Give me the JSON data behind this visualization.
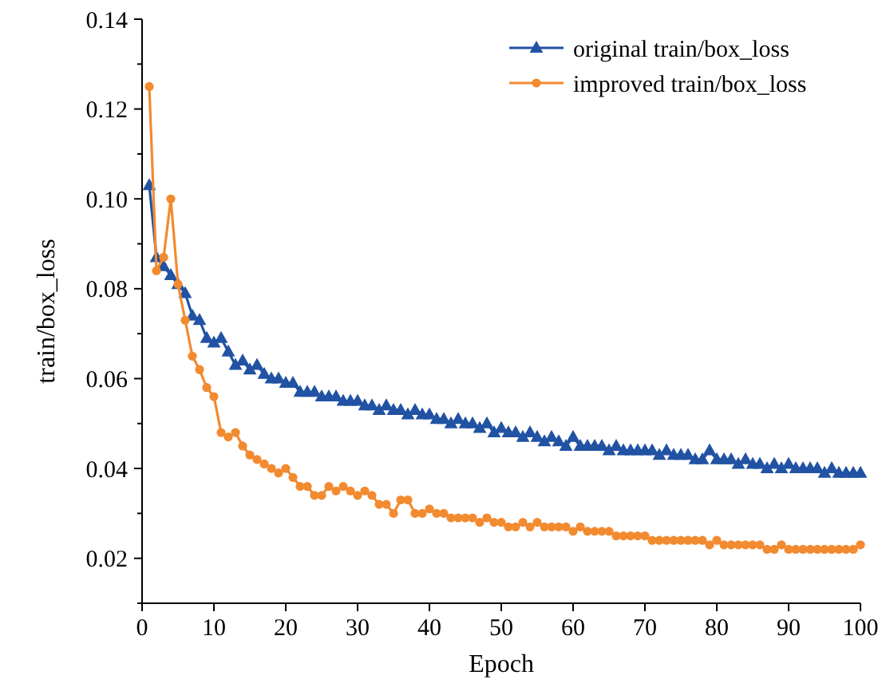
{
  "chart_data": {
    "type": "line",
    "xlabel": "Epoch",
    "ylabel": "train/box_loss",
    "x": [
      1,
      2,
      3,
      4,
      5,
      6,
      7,
      8,
      9,
      10,
      11,
      12,
      13,
      14,
      15,
      16,
      17,
      18,
      19,
      20,
      21,
      22,
      23,
      24,
      25,
      26,
      27,
      28,
      29,
      30,
      31,
      32,
      33,
      34,
      35,
      36,
      37,
      38,
      39,
      40,
      41,
      42,
      43,
      44,
      45,
      46,
      47,
      48,
      49,
      50,
      51,
      52,
      53,
      54,
      55,
      56,
      57,
      58,
      59,
      60,
      61,
      62,
      63,
      64,
      65,
      66,
      67,
      68,
      69,
      70,
      71,
      72,
      73,
      74,
      75,
      76,
      77,
      78,
      79,
      80,
      81,
      82,
      83,
      84,
      85,
      86,
      87,
      88,
      89,
      90,
      91,
      92,
      93,
      94,
      95,
      96,
      97,
      98,
      99,
      100
    ],
    "series": [
      {
        "name": "original train/box_loss",
        "color": "#2152a3",
        "marker": "triangle",
        "values": [
          0.103,
          0.087,
          0.085,
          0.083,
          0.081,
          0.079,
          0.074,
          0.073,
          0.069,
          0.068,
          0.069,
          0.066,
          0.063,
          0.064,
          0.062,
          0.063,
          0.061,
          0.06,
          0.06,
          0.059,
          0.059,
          0.057,
          0.057,
          0.057,
          0.056,
          0.056,
          0.056,
          0.055,
          0.055,
          0.055,
          0.054,
          0.054,
          0.053,
          0.054,
          0.053,
          0.053,
          0.052,
          0.053,
          0.052,
          0.052,
          0.051,
          0.051,
          0.05,
          0.051,
          0.05,
          0.05,
          0.049,
          0.05,
          0.048,
          0.049,
          0.048,
          0.048,
          0.047,
          0.048,
          0.047,
          0.046,
          0.047,
          0.046,
          0.045,
          0.047,
          0.045,
          0.045,
          0.045,
          0.045,
          0.044,
          0.045,
          0.044,
          0.044,
          0.044,
          0.044,
          0.044,
          0.043,
          0.044,
          0.043,
          0.043,
          0.043,
          0.042,
          0.042,
          0.044,
          0.042,
          0.042,
          0.042,
          0.041,
          0.042,
          0.041,
          0.041,
          0.04,
          0.041,
          0.04,
          0.041,
          0.04,
          0.04,
          0.04,
          0.04,
          0.039,
          0.04,
          0.039,
          0.039,
          0.039,
          0.039
        ]
      },
      {
        "name": "improved train/box_loss",
        "color": "#f28a30",
        "marker": "circle",
        "values": [
          0.125,
          0.084,
          0.087,
          0.1,
          0.081,
          0.073,
          0.065,
          0.062,
          0.058,
          0.056,
          0.048,
          0.047,
          0.048,
          0.045,
          0.043,
          0.042,
          0.041,
          0.04,
          0.039,
          0.04,
          0.038,
          0.036,
          0.036,
          0.034,
          0.034,
          0.036,
          0.035,
          0.036,
          0.035,
          0.034,
          0.035,
          0.034,
          0.032,
          0.032,
          0.03,
          0.033,
          0.033,
          0.03,
          0.03,
          0.031,
          0.03,
          0.03,
          0.029,
          0.029,
          0.029,
          0.029,
          0.028,
          0.029,
          0.028,
          0.028,
          0.027,
          0.027,
          0.028,
          0.027,
          0.028,
          0.027,
          0.027,
          0.027,
          0.027,
          0.026,
          0.027,
          0.026,
          0.026,
          0.026,
          0.026,
          0.025,
          0.025,
          0.025,
          0.025,
          0.025,
          0.024,
          0.024,
          0.024,
          0.024,
          0.024,
          0.024,
          0.024,
          0.024,
          0.023,
          0.024,
          0.023,
          0.023,
          0.023,
          0.023,
          0.023,
          0.023,
          0.022,
          0.022,
          0.023,
          0.022,
          0.022,
          0.022,
          0.022,
          0.022,
          0.022,
          0.022,
          0.022,
          0.022,
          0.022,
          0.023
        ]
      }
    ],
    "xlim": [
      0,
      100
    ],
    "xticks": [
      0,
      10,
      20,
      30,
      40,
      50,
      60,
      70,
      80,
      90,
      100
    ],
    "ylim": [
      0.01,
      0.14
    ],
    "yticks": [
      {
        "value": 0.01,
        "label": null
      },
      0.02,
      {
        "value": 0.03,
        "label": null
      },
      0.04,
      {
        "value": 0.05,
        "label": null
      },
      0.06,
      {
        "value": 0.07,
        "label": null
      },
      0.08,
      {
        "value": 0.09,
        "label": null
      },
      {
        "value": 0.1,
        "label": "0.10"
      },
      {
        "value": 0.11,
        "label": null
      },
      0.12,
      {
        "value": 0.13,
        "label": null
      },
      0.14
    ],
    "grid": false,
    "legend": "top right",
    "line_style": "solid"
  }
}
